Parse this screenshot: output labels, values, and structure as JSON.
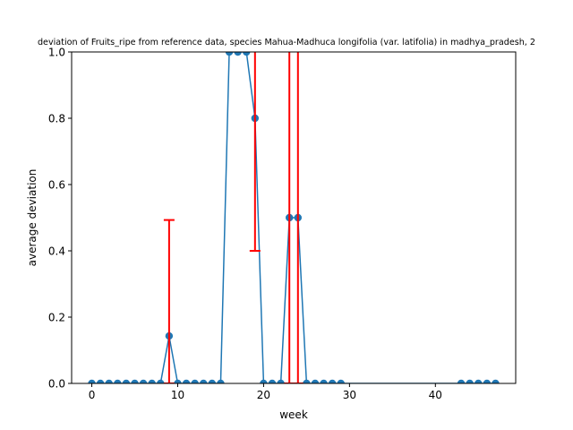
{
  "chart_data": {
    "type": "line",
    "title": "deviation of Fruits_ripe from reference data, species Mahua-Madhuca longifolia (var. latifolia) in madhya_pradesh, 2",
    "xlabel": "week",
    "ylabel": "average deviation",
    "xlim": [
      -2.35,
      49.35
    ],
    "ylim": [
      0,
      1
    ],
    "x_ticks": [
      0,
      10,
      20,
      30,
      40
    ],
    "y_ticks": [
      0.0,
      0.2,
      0.4,
      0.6,
      0.8,
      1.0
    ],
    "x_tick_labels": [
      "0",
      "10",
      "20",
      "30",
      "40"
    ],
    "y_tick_labels": [
      "0.0",
      "0.2",
      "0.4",
      "0.6",
      "0.8",
      "1.0"
    ],
    "grid": false,
    "series": [
      {
        "color": "#1f77b4",
        "points": [
          [
            0,
            0
          ],
          [
            1,
            0
          ],
          [
            2,
            0
          ],
          [
            3,
            0
          ],
          [
            4,
            0
          ],
          [
            5,
            0
          ],
          [
            6,
            0
          ],
          [
            7,
            0
          ],
          [
            8,
            0
          ],
          [
            9,
            0.143
          ],
          [
            10,
            0
          ],
          [
            11,
            0
          ],
          [
            12,
            0
          ],
          [
            13,
            0
          ],
          [
            14,
            0
          ],
          [
            15,
            0
          ],
          [
            16,
            1.0
          ],
          [
            17,
            1.0
          ],
          [
            18,
            1.0
          ],
          [
            19,
            0.8
          ],
          [
            20,
            0
          ],
          [
            21,
            0
          ],
          [
            22,
            0
          ],
          [
            23,
            0.5
          ],
          [
            24,
            0.5
          ],
          [
            25,
            0
          ],
          [
            26,
            0
          ],
          [
            27,
            0
          ],
          [
            28,
            0
          ],
          [
            29,
            0
          ],
          [
            43,
            0
          ],
          [
            44,
            0
          ],
          [
            45,
            0
          ],
          [
            46,
            0
          ],
          [
            47,
            0
          ]
        ]
      }
    ],
    "error_bars": {
      "color": "#ff0000",
      "items": [
        {
          "x": 9,
          "lower": 0,
          "upper": 0.493
        },
        {
          "x": 19,
          "lower": 0.4,
          "upper": 1.2
        },
        {
          "x": 23,
          "lower": 0,
          "upper": 1.2
        },
        {
          "x": 24,
          "lower": 0,
          "upper": 1.2
        }
      ]
    }
  }
}
